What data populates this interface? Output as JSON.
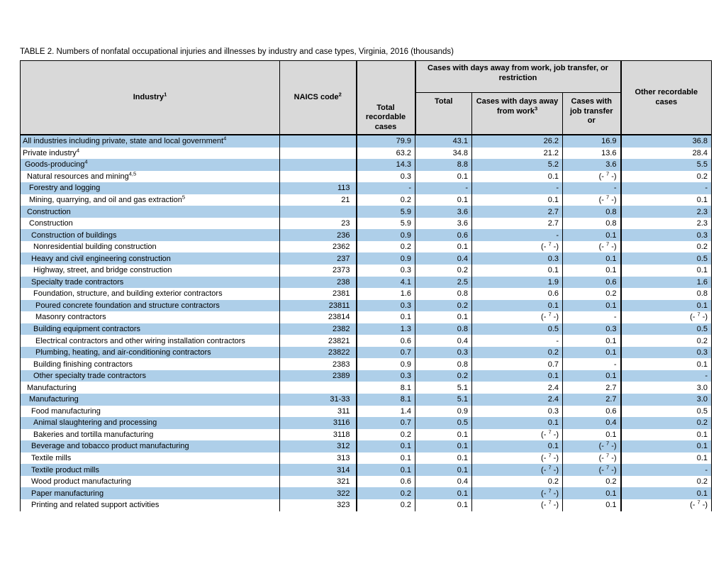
{
  "title": "TABLE 2. Numbers of nonfatal occupational injuries and illnesses by industry and case types, Virginia, 2016 (thousands)",
  "colors": {
    "row_highlight": "#aecfe9",
    "header_bg": "#d9d9d9",
    "border": "#000000"
  },
  "table": {
    "columns": {
      "industry": "Industry<sup>1</sup>",
      "naics": "NAICS code<sup>2</sup>",
      "total_recordable": "Total recordable cases",
      "span_group": "Cases with days away from work, job transfer, or restriction",
      "sub_total": "Total",
      "sub_days_away": "Cases with days away from work<sup>3</sup>",
      "sub_job_transfer": "Cases with job transfer or",
      "other_recordable": "Other recordable cases"
    },
    "rows": [
      {
        "industry": "All industries including private, state and local government<sup>4</sup>",
        "indent": 0,
        "naics": "",
        "values": [
          "79.9",
          "43.1",
          "26.2",
          "16.9",
          "36.8"
        ]
      },
      {
        "industry": "Private industry<sup>4</sup>",
        "indent": 0,
        "naics": "",
        "values": [
          "63.2",
          "34.8",
          "21.2",
          "13.6",
          "28.4"
        ]
      },
      {
        "industry": "Goods-producing<sup>4</sup>",
        "indent": 1,
        "naics": "",
        "values": [
          "14.3",
          "8.8",
          "5.2",
          "3.6",
          "5.5"
        ]
      },
      {
        "industry": "Natural resources and mining<sup>4,5</sup>",
        "indent": 2,
        "naics": "",
        "values": [
          "0.3",
          "0.1",
          "0.1",
          "(- <sup>7</sup> -)",
          "0.2"
        ]
      },
      {
        "industry": "Forestry and logging",
        "indent": 3,
        "naics": "113",
        "values": [
          "-",
          "-",
          "-",
          "-",
          "-"
        ]
      },
      {
        "industry": "Mining, quarrying, and oil and gas extraction<sup>5</sup>",
        "indent": 3,
        "naics": "21",
        "values": [
          "0.2",
          "0.1",
          "0.1",
          "(- <sup>7</sup> -)",
          "0.1"
        ]
      },
      {
        "industry": "Construction",
        "indent": 2,
        "naics": "",
        "values": [
          "5.9",
          "3.6",
          "2.7",
          "0.8",
          "2.3"
        ]
      },
      {
        "industry": "Construction",
        "indent": 3,
        "naics": "23",
        "values": [
          "5.9",
          "3.6",
          "2.7",
          "0.8",
          "2.3"
        ]
      },
      {
        "industry": "Construction of buildings",
        "indent": 4,
        "naics": "236",
        "values": [
          "0.9",
          "0.6",
          "-",
          "0.1",
          "0.3"
        ]
      },
      {
        "industry": "Nonresidential building construction",
        "indent": 5,
        "naics": "2362",
        "values": [
          "0.2",
          "0.1",
          "(- <sup>7</sup> -)",
          "(- <sup>7</sup> -)",
          "0.2"
        ]
      },
      {
        "industry": "Heavy and civil engineering construction",
        "indent": 4,
        "naics": "237",
        "values": [
          "0.9",
          "0.4",
          "0.3",
          "0.1",
          "0.5"
        ]
      },
      {
        "industry": "Highway, street, and bridge construction",
        "indent": 5,
        "naics": "2373",
        "values": [
          "0.3",
          "0.2",
          "0.1",
          "0.1",
          "0.1"
        ]
      },
      {
        "industry": "Specialty trade contractors",
        "indent": 4,
        "naics": "238",
        "values": [
          "4.1",
          "2.5",
          "1.9",
          "0.6",
          "1.6"
        ]
      },
      {
        "industry": "Foundation, structure, and building exterior contractors",
        "indent": 5,
        "naics": "2381",
        "values": [
          "1.6",
          "0.8",
          "0.6",
          "0.2",
          "0.8"
        ]
      },
      {
        "industry": "Poured concrete foundation and structure contractors",
        "indent": 6,
        "naics": "23811",
        "values": [
          "0.3",
          "0.2",
          "0.1",
          "0.1",
          "0.1"
        ]
      },
      {
        "industry": "Masonry contractors",
        "indent": 6,
        "naics": "23814",
        "values": [
          "0.1",
          "0.1",
          "(- <sup>7</sup> -)",
          "-",
          "(- <sup>7</sup> -)"
        ]
      },
      {
        "industry": "Building equipment contractors",
        "indent": 5,
        "naics": "2382",
        "values": [
          "1.3",
          "0.8",
          "0.5",
          "0.3",
          "0.5"
        ]
      },
      {
        "industry": "Electrical contractors and other wiring installation contractors",
        "indent": 6,
        "naics": "23821",
        "values": [
          "0.6",
          "0.4",
          "-",
          "0.1",
          "0.2"
        ]
      },
      {
        "industry": "Plumbing, heating, and air-conditioning contractors",
        "indent": 6,
        "naics": "23822",
        "values": [
          "0.7",
          "0.3",
          "0.2",
          "0.1",
          "0.3"
        ]
      },
      {
        "industry": "Building finishing contractors",
        "indent": 5,
        "naics": "2383",
        "values": [
          "0.9",
          "0.8",
          "0.7",
          "-",
          "0.1"
        ]
      },
      {
        "industry": "Other specialty trade contractors",
        "indent": 5,
        "naics": "2389",
        "values": [
          "0.3",
          "0.2",
          "0.1",
          "0.1",
          "-"
        ]
      },
      {
        "industry": "Manufacturing",
        "indent": 2,
        "naics": "",
        "values": [
          "8.1",
          "5.1",
          "2.4",
          "2.7",
          "3.0"
        ]
      },
      {
        "industry": "Manufacturing",
        "indent": 3,
        "naics": "31-33",
        "values": [
          "8.1",
          "5.1",
          "2.4",
          "2.7",
          "3.0"
        ]
      },
      {
        "industry": "Food manufacturing",
        "indent": 4,
        "naics": "311",
        "values": [
          "1.4",
          "0.9",
          "0.3",
          "0.6",
          "0.5"
        ]
      },
      {
        "industry": "Animal slaughtering and processing",
        "indent": 5,
        "naics": "3116",
        "values": [
          "0.7",
          "0.5",
          "0.1",
          "0.4",
          "0.2"
        ]
      },
      {
        "industry": "Bakeries and tortilla manufacturing",
        "indent": 5,
        "naics": "3118",
        "values": [
          "0.2",
          "0.1",
          "(- <sup>7</sup> -)",
          "0.1",
          "0.1"
        ]
      },
      {
        "industry": "Beverage and tobacco product manufacturing",
        "indent": 4,
        "naics": "312",
        "values": [
          "0.1",
          "0.1",
          "0.1",
          "(- <sup>7</sup> -)",
          "0.1"
        ]
      },
      {
        "industry": "Textile mills",
        "indent": 4,
        "naics": "313",
        "values": [
          "0.1",
          "0.1",
          "(- <sup>7</sup> -)",
          "(- <sup>7</sup> -)",
          "0.1"
        ]
      },
      {
        "industry": "Textile product mills",
        "indent": 4,
        "naics": "314",
        "values": [
          "0.1",
          "0.1",
          "(- <sup>7</sup> -)",
          "(- <sup>7</sup> -)",
          "-"
        ]
      },
      {
        "industry": "Wood product manufacturing",
        "indent": 4,
        "naics": "321",
        "values": [
          "0.6",
          "0.4",
          "0.2",
          "0.2",
          "0.2"
        ]
      },
      {
        "industry": "Paper manufacturing",
        "indent": 4,
        "naics": "322",
        "values": [
          "0.2",
          "0.1",
          "(- <sup>7</sup> -)",
          "0.1",
          "0.1"
        ]
      },
      {
        "industry": "Printing and related support activities",
        "indent": 4,
        "naics": "323",
        "values": [
          "0.2",
          "0.1",
          "(- <sup>7</sup> -)",
          "0.1",
          "(- <sup>7</sup> -)"
        ]
      }
    ]
  }
}
